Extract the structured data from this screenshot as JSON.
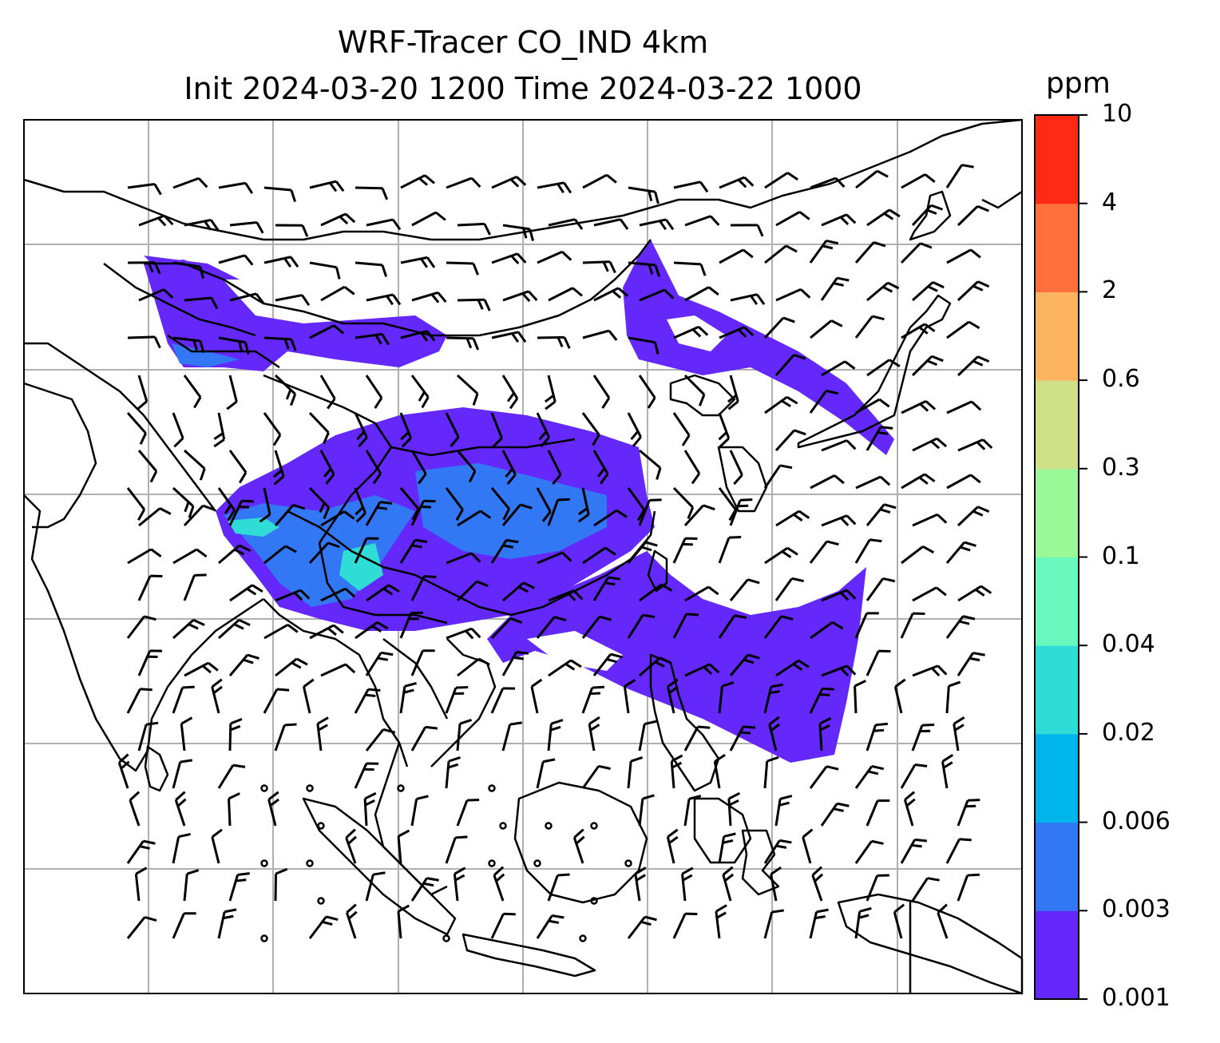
{
  "title": {
    "line1": "WRF-Tracer CO_IND 4km",
    "line2": "Init 2024-03-20 1200 Time 2024-03-22 1000"
  },
  "colorbar": {
    "units": "ppm",
    "ticks": [
      "0.001",
      "0.003",
      "0.006",
      "0.02",
      "0.04",
      "0.1",
      "0.3",
      "0.6",
      "2",
      "4",
      "10"
    ],
    "colors": [
      "#6428fa",
      "#3278f5",
      "#00b4ec",
      "#2fdcd6",
      "#6af8be",
      "#9bf897",
      "#d0e087",
      "#fdb461",
      "#ff703d",
      "#ff2a15"
    ]
  },
  "map": {
    "background": "#ffffff",
    "gridline_color": "#b0b0b0",
    "coastline_color": "#000000",
    "plume_color": "#6428fa",
    "plume_inner_color": "#3278f5",
    "plume_core_color": "#2fdcd6",
    "wind_barbs": "black"
  }
}
